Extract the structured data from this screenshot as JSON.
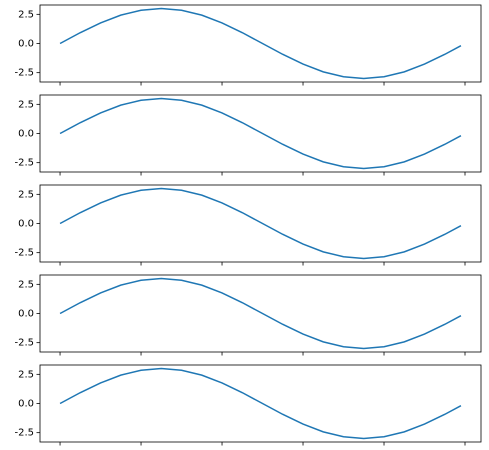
{
  "chart_data": [
    {
      "type": "line",
      "x": [
        0,
        5,
        10,
        15,
        20,
        25,
        30,
        35,
        40,
        45,
        50,
        55,
        60,
        65,
        70,
        75,
        80,
        85,
        90,
        95,
        99
      ],
      "values": [
        0,
        0.93,
        1.76,
        2.43,
        2.85,
        3,
        2.85,
        2.43,
        1.76,
        0.93,
        0,
        -0.93,
        -1.76,
        -2.43,
        -2.85,
        -3,
        -2.85,
        -2.43,
        -1.76,
        -0.93,
        -0.19
      ],
      "color": "#1f77b4",
      "xlim": [
        -4.95,
        103.95
      ],
      "xticks": [
        0,
        20,
        40,
        60,
        80,
        100
      ],
      "ylim": [
        -3.3,
        3.3
      ],
      "yticks": [
        {
          "value": -2.5,
          "label": "-2.5"
        },
        {
          "value": 0,
          "label": "0.0"
        },
        {
          "value": 2.5,
          "label": "2.5"
        }
      ]
    },
    {
      "type": "line",
      "x": [
        0,
        5,
        10,
        15,
        20,
        25,
        30,
        35,
        40,
        45,
        50,
        55,
        60,
        65,
        70,
        75,
        80,
        85,
        90,
        95,
        99
      ],
      "values": [
        0,
        0.93,
        1.76,
        2.43,
        2.85,
        3,
        2.85,
        2.43,
        1.76,
        0.93,
        0,
        -0.93,
        -1.76,
        -2.43,
        -2.85,
        -3,
        -2.85,
        -2.43,
        -1.76,
        -0.93,
        -0.19
      ],
      "color": "#1f77b4",
      "xlim": [
        -4.95,
        103.95
      ],
      "xticks": [
        0,
        20,
        40,
        60,
        80,
        100
      ],
      "ylim": [
        -3.3,
        3.3
      ],
      "yticks": [
        {
          "value": -2.5,
          "label": "-2.5"
        },
        {
          "value": 0,
          "label": "0.0"
        },
        {
          "value": 2.5,
          "label": "2.5"
        }
      ]
    },
    {
      "type": "line",
      "x": [
        0,
        5,
        10,
        15,
        20,
        25,
        30,
        35,
        40,
        45,
        50,
        55,
        60,
        65,
        70,
        75,
        80,
        85,
        90,
        95,
        99
      ],
      "values": [
        0,
        0.93,
        1.76,
        2.43,
        2.85,
        3,
        2.85,
        2.43,
        1.76,
        0.93,
        0,
        -0.93,
        -1.76,
        -2.43,
        -2.85,
        -3,
        -2.85,
        -2.43,
        -1.76,
        -0.93,
        -0.19
      ],
      "color": "#1f77b4",
      "xlim": [
        -4.95,
        103.95
      ],
      "xticks": [
        0,
        20,
        40,
        60,
        80,
        100
      ],
      "ylim": [
        -3.3,
        3.3
      ],
      "yticks": [
        {
          "value": -2.5,
          "label": "-2.5"
        },
        {
          "value": 0,
          "label": "0.0"
        },
        {
          "value": 2.5,
          "label": "2.5"
        }
      ]
    },
    {
      "type": "line",
      "x": [
        0,
        5,
        10,
        15,
        20,
        25,
        30,
        35,
        40,
        45,
        50,
        55,
        60,
        65,
        70,
        75,
        80,
        85,
        90,
        95,
        99
      ],
      "values": [
        0,
        0.93,
        1.76,
        2.43,
        2.85,
        3,
        2.85,
        2.43,
        1.76,
        0.93,
        0,
        -0.93,
        -1.76,
        -2.43,
        -2.85,
        -3,
        -2.85,
        -2.43,
        -1.76,
        -0.93,
        -0.19
      ],
      "color": "#1f77b4",
      "xlim": [
        -4.95,
        103.95
      ],
      "xticks": [
        0,
        20,
        40,
        60,
        80,
        100
      ],
      "ylim": [
        -3.3,
        3.3
      ],
      "yticks": [
        {
          "value": -2.5,
          "label": "-2.5"
        },
        {
          "value": 0,
          "label": "0.0"
        },
        {
          "value": 2.5,
          "label": "2.5"
        }
      ]
    },
    {
      "type": "line",
      "x": [
        0,
        5,
        10,
        15,
        20,
        25,
        30,
        35,
        40,
        45,
        50,
        55,
        60,
        65,
        70,
        75,
        80,
        85,
        90,
        95,
        99
      ],
      "values": [
        0,
        0.93,
        1.76,
        2.43,
        2.85,
        3,
        2.85,
        2.43,
        1.76,
        0.93,
        0,
        -0.93,
        -1.76,
        -2.43,
        -2.85,
        -3,
        -2.85,
        -2.43,
        -1.76,
        -0.93,
        -0.19
      ],
      "color": "#1f77b4",
      "xlim": [
        -4.95,
        103.95
      ],
      "xticks": [
        0,
        20,
        40,
        60,
        80,
        100
      ],
      "ylim": [
        -3.3,
        3.3
      ],
      "yticks": [
        {
          "value": -2.5,
          "label": "-2.5"
        },
        {
          "value": 0,
          "label": "0.0"
        },
        {
          "value": 2.5,
          "label": "2.5"
        }
      ]
    }
  ]
}
